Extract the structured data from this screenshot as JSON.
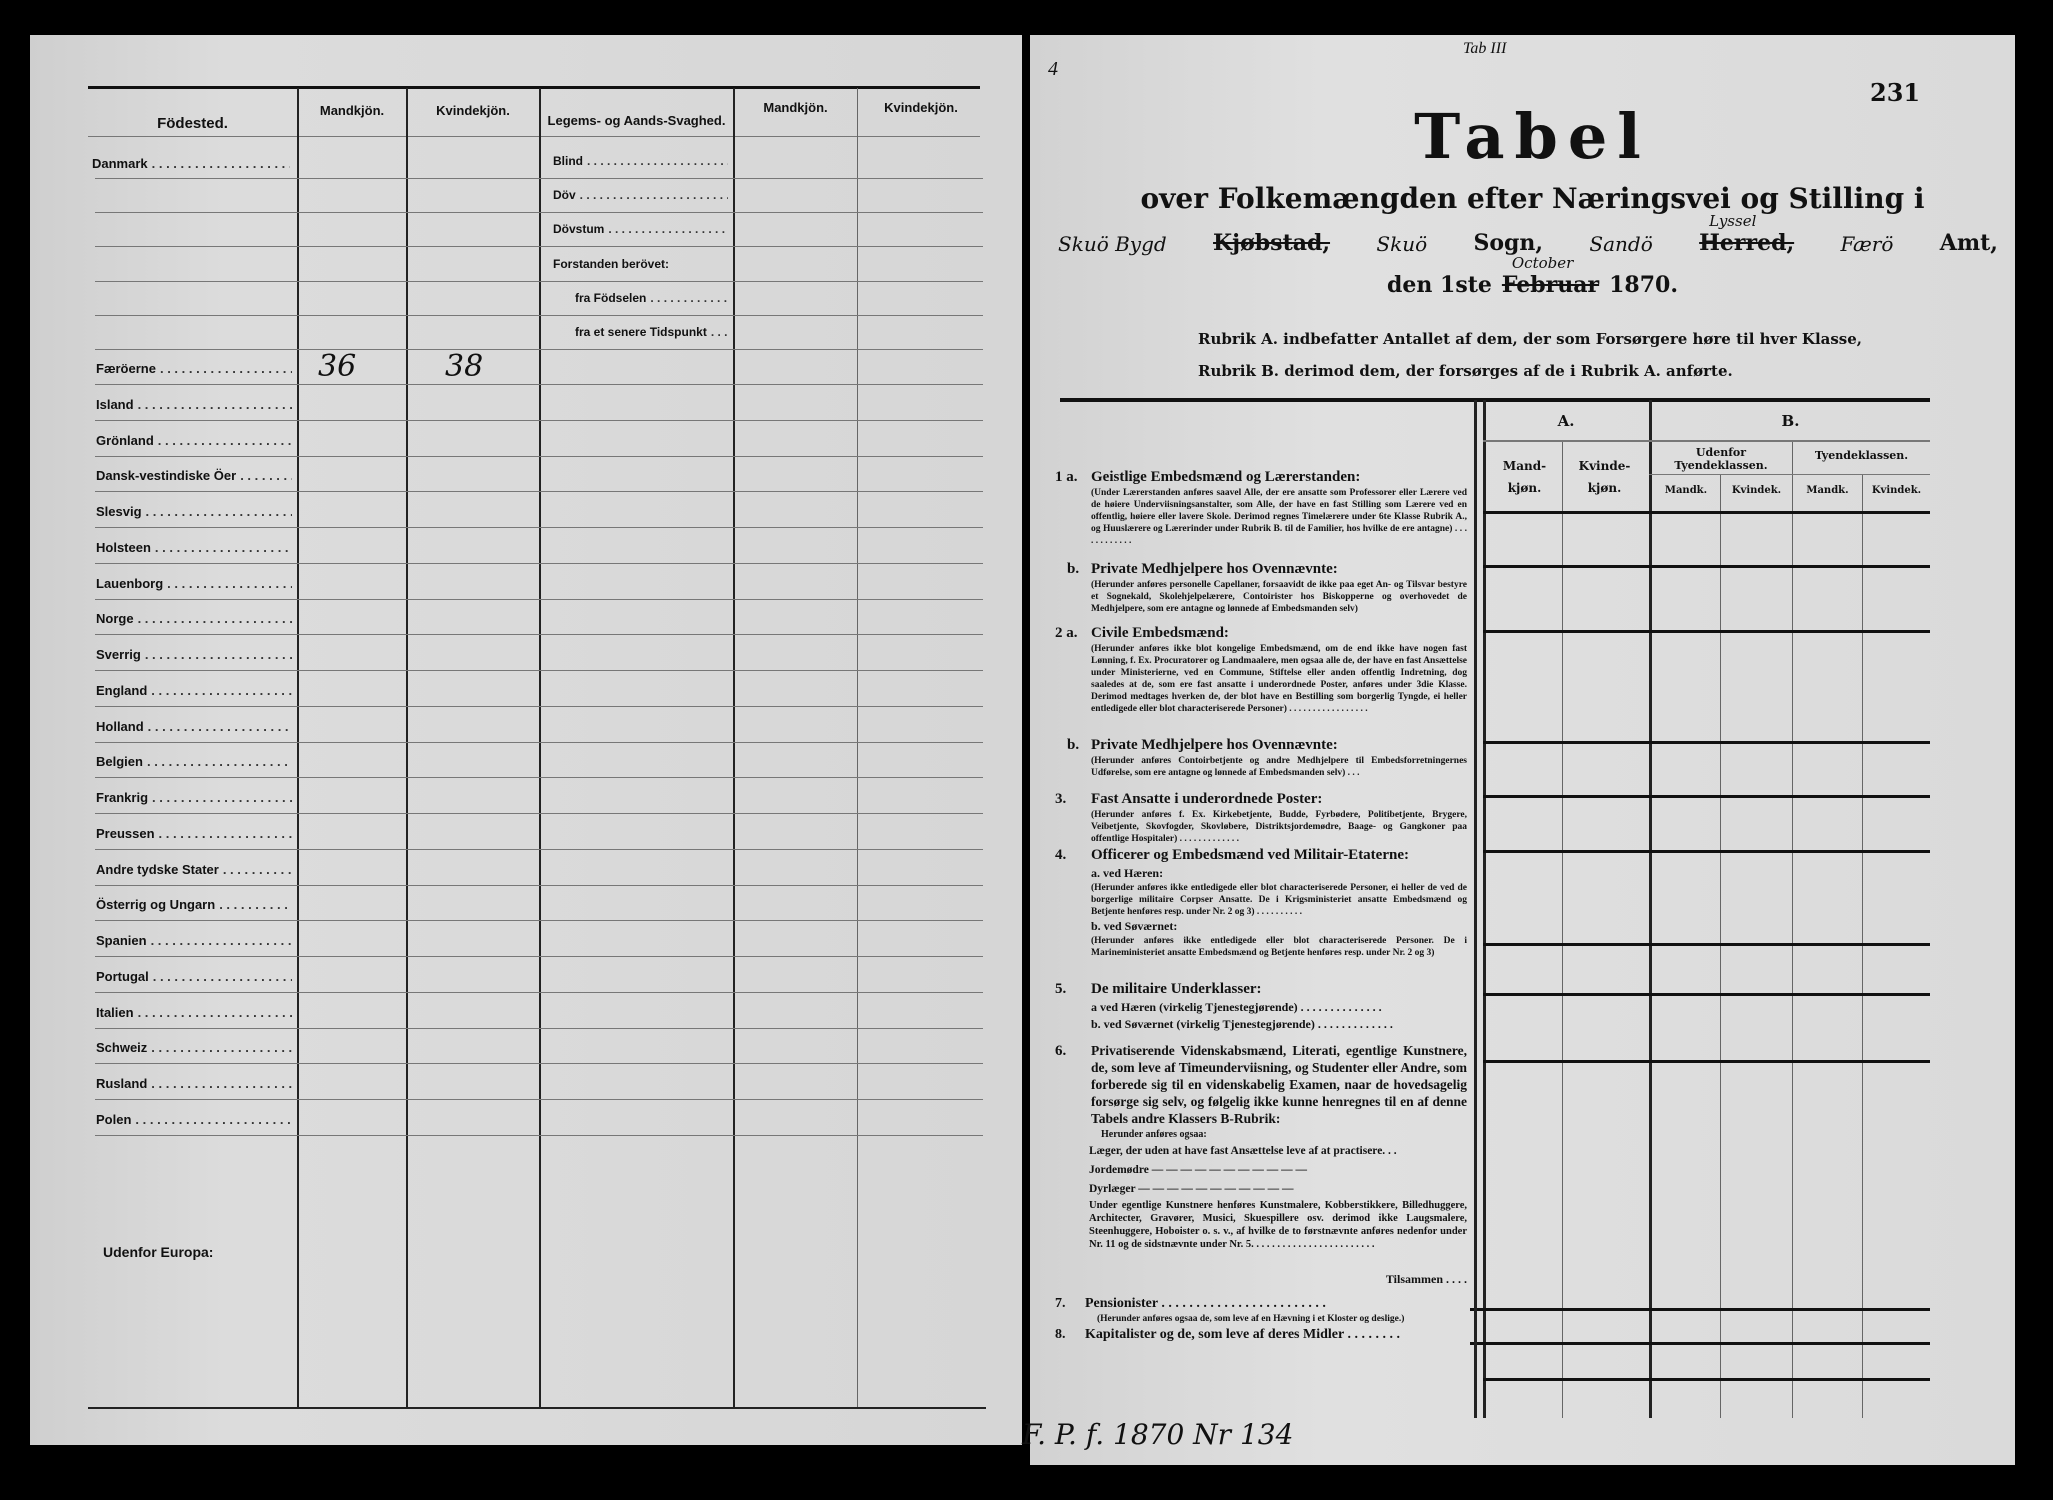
{
  "left_page": {
    "headers": {
      "birthplace": "Födested.",
      "male": "Mandkjön.",
      "female": "Kvindekjön.",
      "infirmity": "Legems- og Aands-Svaghed.",
      "male2": "Mandkjön.",
      "female2": "Kvindekjön."
    },
    "birthplaces_top": [
      {
        "name": "Danmark",
        "male": "",
        "female": ""
      }
    ],
    "birthplaces": [
      {
        "name": "Færöerne",
        "male": "36",
        "female": "38"
      },
      {
        "name": "Island"
      },
      {
        "name": "Grönland"
      },
      {
        "name": "Dansk-vestindiske Öer"
      },
      {
        "name": "Slesvig"
      },
      {
        "name": "Holsteen"
      },
      {
        "name": "Lauenborg"
      },
      {
        "name": "Norge"
      },
      {
        "name": "Sverrig"
      },
      {
        "name": "England"
      },
      {
        "name": "Holland"
      },
      {
        "name": "Belgien"
      },
      {
        "name": "Frankrig"
      },
      {
        "name": "Preussen"
      },
      {
        "name": "Andre tydske Stater"
      },
      {
        "name": "Österrig og Ungarn"
      },
      {
        "name": "Spanien"
      },
      {
        "name": "Portugal"
      },
      {
        "name": "Italien"
      },
      {
        "name": "Schweiz"
      },
      {
        "name": "Rusland"
      },
      {
        "name": "Polen"
      }
    ],
    "outside_europe": "Udenfor Europa:",
    "infirmities": [
      "Blind",
      "Döv",
      "Dövstum",
      "Forstanden berövet:",
      "fra Födselen",
      "fra et senere Tidspunkt"
    ]
  },
  "right_page": {
    "top_note": "Tab III",
    "corner_mark": "4",
    "page_number": "231",
    "title": "Tabel",
    "subtitle": "over Folkemængden efter Næringsvei og Stilling i",
    "location_line": {
      "handwritten_1": "Skuö Bygd",
      "printed_kjobstad": "Kjøbstad,",
      "handwritten_2": "Skuö",
      "printed_sogn": "Sogn,",
      "handwritten_3": "Sandö",
      "handwritten_above": "Lyssel",
      "printed_herred": "Herred,",
      "handwritten_4": "Færö",
      "printed_amt": "Amt,"
    },
    "date_line": {
      "prefix": "den 1ste",
      "struck_month": "Februar",
      "handwritten_month": "October",
      "year": "1870."
    },
    "rubrik_a": "Rubrik A. indbefatter Antallet af dem, der som Forsørgere høre til hver Klasse,",
    "rubrik_b": "Rubrik B. derimod dem, der forsørges af de i Rubrik A. anførte.",
    "columns": {
      "a": "A.",
      "b": "B.",
      "a_male": "Mand-kjøn.",
      "a_female": "Kvinde-kjøn.",
      "b_outside": "Udenfor Tyendeklassen.",
      "b_servants": "Tyendeklassen.",
      "mandk": "Mandk.",
      "kvindek": "Kvindek."
    },
    "sections": [
      {
        "num": "1 a.",
        "title": "Geistlige Embedsmænd og Lærerstanden:",
        "note": "(Under Lærerstanden anføres saavel Alle, der ere ansatte som Professorer eller Lærere ved de høiere Underviisningsanstalter, som Alle, der have en fast Stilling som Lærere ved en offentlig, høiere eller lavere Skole. Derimod regnes Timelærere under 6te Klasse Rubrik A., og Huuslærere og Lærerinder under Rubrik B. til de Familier, hos hvilke de ere antagne) . . . . . . . . . . . ."
      },
      {
        "num": "b.",
        "title": "Private Medhjelpere hos Ovennævnte:",
        "note": "(Herunder anføres personelle Capellaner, forsaavidt de ikke paa eget An- og Tilsvar bestyre et Sognekald, Skolehjelpelærere, Contoirister hos Biskopperne og overhovedet de Medhjelpere, som ere antagne og lønnede af Embedsmanden selv)"
      },
      {
        "num": "2 a.",
        "title": "Civile Embedsmænd:",
        "note": "(Herunder anføres ikke blot kongelige Embedsmænd, om de end ikke have nogen fast Lønning, f. Ex. Procuratorer og Landmaalere, men ogsaa alle de, der have en fast Ansættelse under Ministerierne, ved en Commune, Stiftelse eller anden offentlig Indretning, dog saaledes at de, som ere fast ansatte i underordnede Poster, anføres under 3die Klasse. Derimod medtages hverken de, der blot have en Bestilling som borgerlig Tyngde, ei heller entledigede eller blot characteriserede Personer) . . . . . . . . . . . . . . . . ."
      },
      {
        "num": "b.",
        "title": "Private Medhjelpere hos Ovennævnte:",
        "note": "(Herunder anføres Contoirbetjente og andre Medhjelpere til Embedsforretningernes Udførelse, som ere antagne og lønnede af Embedsmanden selv) . . ."
      },
      {
        "num": "3.",
        "title": "Fast Ansatte i underordnede Poster:",
        "note": "(Herunder anføres f. Ex. Kirkebetjente, Budde, Fyrbødere, Politibetjente, Brygere, Veibetjente, Skovfogder, Skovløbere, Distriktsjordemødre, Baage- og Gangkoner paa offentlige Hospitaler) . . . . . . . . . . . . ."
      },
      {
        "num": "4.",
        "title": "Officerer og Embedsmænd ved Militair-Etaterne:",
        "sub_a": "a. ved Hæren:",
        "note_a": "(Herunder anføres ikke entledigede eller blot characteriserede Personer, ei heller de ved de borgerlige militaire Corpser Ansatte. De i Krigsministeriet ansatte Embedsmænd og Betjente henføres resp. under Nr. 2 og 3) . . . . . . . . . .",
        "sub_b": "b. ved Søværnet:",
        "note_b": "(Herunder anføres ikke entledigede eller blot characteriserede Personer. De i Marineministeriet ansatte Embedsmænd og Betjente henføres resp. under Nr. 2 og 3)"
      },
      {
        "num": "5.",
        "title": "De militaire Underklasser:",
        "sub_a": "a  ved Hæren (virkelig Tjenestegjørende) . . . . . . . . . . . . . .",
        "sub_b": "b. ved Søværnet (virkelig Tjenestegjørende) . . . . . . . . . . . . ."
      },
      {
        "num": "6.",
        "title": "Privatiserende Videnskabsmænd, Literati, egentlige Kunstnere, de, som leve af Timeunderviisning, og Studenter eller Andre, som forberede sig til en videnskabelig Examen, naar de hovedsagelig forsørge sig selv, og følgelig ikke kunne henregnes til en af denne Tabels andre Klassers B-Rubrik:",
        "also": "Herunder anføres ogsaa:",
        "items": [
          "Læger, der uden at have fast Ansættelse leve af at practisere. . .",
          "Jordemødre — — — — — — — — — — —",
          "Dyrlæger — — — — — — — — — — —"
        ],
        "note": "Under egentlige Kunstnere henføres Kunstmalere, Kobberstikkere, Billedhuggere, Architecter, Gravører, Musici, Skuespillere osv. derimod ikke Laugsmalere, Steenhuggere, Hoboister o. s. v., af hvilke de to førstnævnte anføres nedenfor under Nr. 11 og de sidstnævnte under Nr. 5. . . . . . . . . . . . . . . . . . . . . . . ."
      },
      {
        "num": "",
        "title": "Tilsammen . . . ."
      },
      {
        "num": "7.",
        "title": "Pensionister . . . . . . . . . . . . . . . . . . . . . . . .",
        "note": "(Herunder anføres ogsaa de, som leve af en Hævning i et Kloster og deslige.)"
      },
      {
        "num": "8.",
        "title": "Kapitalister og de, som leve af deres Midler . . . . . . . ."
      }
    ],
    "archive_note": "F. P. f. 1870 Nr 134"
  },
  "colors": {
    "paper": "#d9d9d9",
    "ink": "#111111",
    "background": "#000000"
  }
}
